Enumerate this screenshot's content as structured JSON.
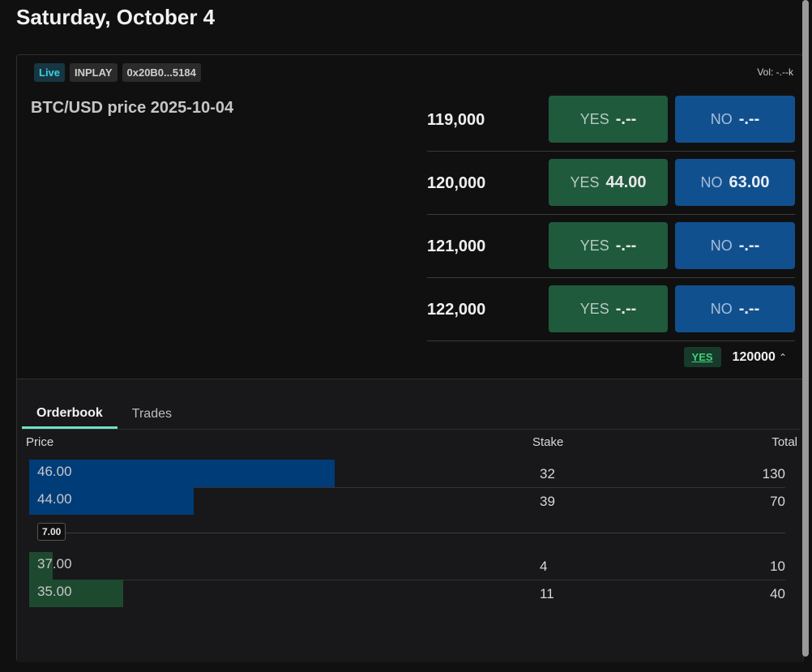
{
  "page": {
    "title": "Saturday, October 4"
  },
  "market": {
    "badges": {
      "live": "Live",
      "status": "INPLAY",
      "address": "0x20B0...5184"
    },
    "volume": "Vol: -.--k",
    "title": "BTC/USD price 2025-10-04",
    "ladder": [
      {
        "strike": "119,000",
        "yes_label": "YES",
        "yes_price": "-.--",
        "no_label": "NO",
        "no_price": "-.--"
      },
      {
        "strike": "120,000",
        "yes_label": "YES",
        "yes_price": "44.00",
        "no_label": "NO",
        "no_price": "63.00"
      },
      {
        "strike": "121,000",
        "yes_label": "YES",
        "yes_price": "-.--",
        "no_label": "NO",
        "no_price": "-.--"
      },
      {
        "strike": "122,000",
        "yes_label": "YES",
        "yes_price": "-.--",
        "no_label": "NO",
        "no_price": "-.--"
      }
    ],
    "selection": {
      "side": "YES",
      "strike": "120000",
      "chevron": "^"
    }
  },
  "orderbook": {
    "tabs": {
      "orderbook": "Orderbook",
      "trades": "Trades"
    },
    "headers": {
      "price": "Price",
      "stake": "Stake",
      "total": "Total"
    },
    "asks": [
      {
        "price": "46.00",
        "stake": "32",
        "total": "130",
        "depth": 1.0
      },
      {
        "price": "44.00",
        "stake": "39",
        "total": "70",
        "depth": 0.538
      }
    ],
    "spread": "7.00",
    "bids": [
      {
        "price": "37.00",
        "stake": "4",
        "total": "10",
        "depth": 0.077
      },
      {
        "price": "35.00",
        "stake": "11",
        "total": "40",
        "depth": 0.308
      }
    ]
  }
}
